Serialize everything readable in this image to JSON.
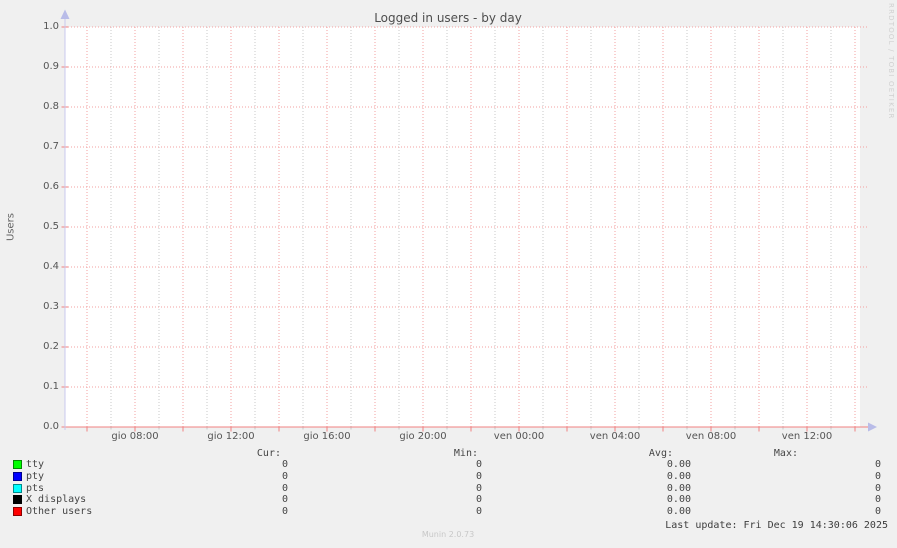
{
  "title": "Logged in users - by day",
  "y_axis_title": "Users",
  "watermark": "RRDTOOL / TOBI OETIKER",
  "footer": {
    "last_update": "Last update: Fri Dec 19 14:30:06 2025",
    "munin_version": "Munin 2.0.73"
  },
  "legend": {
    "headers": {
      "cur": "Cur:",
      "min": "Min:",
      "avg": "Avg:",
      "max": "Max:"
    },
    "rows": [
      {
        "label": "tty",
        "color": "#00ff00",
        "cur": "0",
        "min": "0",
        "avg": "0.00",
        "max": "0"
      },
      {
        "label": "pty",
        "color": "#0000ff",
        "cur": "0",
        "min": "0",
        "avg": "0.00",
        "max": "0"
      },
      {
        "label": "pts",
        "color": "#00ffff",
        "cur": "0",
        "min": "0",
        "avg": "0.00",
        "max": "0"
      },
      {
        "label": "X displays",
        "color": "#000000",
        "cur": "0",
        "min": "0",
        "avg": "0.00",
        "max": "0"
      },
      {
        "label": "Other users",
        "color": "#ff0000",
        "cur": "0",
        "min": "0",
        "avg": "0.00",
        "max": "0"
      }
    ]
  },
  "chart_data": {
    "type": "line",
    "title": "Logged in users - by day",
    "xlabel": "",
    "ylabel": "Users",
    "ylim": [
      0.0,
      1.0
    ],
    "y_tick_step": 0.1,
    "grid": true,
    "x_range_description": "about 33 hours, from Thu (gio) ~05:30 to Fri (ven) ~14:30",
    "x_tick_labels": [
      "gio 08:00",
      "gio 12:00",
      "gio 16:00",
      "gio 20:00",
      "ven 00:00",
      "ven 04:00",
      "ven 08:00",
      "ven 12:00"
    ],
    "y_tick_labels_top_to_bottom": [
      "1.0",
      "0.9",
      "0.8",
      "0.7",
      "0.6",
      "0.5",
      "0.4",
      "0.3",
      "0.2",
      "0.1",
      "0.0"
    ],
    "series": [
      {
        "name": "tty",
        "color": "#00ff00",
        "values": [
          0,
          0,
          0,
          0,
          0,
          0,
          0,
          0
        ]
      },
      {
        "name": "pty",
        "color": "#0000ff",
        "values": [
          0,
          0,
          0,
          0,
          0,
          0,
          0,
          0
        ]
      },
      {
        "name": "pts",
        "color": "#00ffff",
        "values": [
          0,
          0,
          0,
          0,
          0,
          0,
          0,
          0
        ]
      },
      {
        "name": "X displays",
        "color": "#000000",
        "values": [
          0,
          0,
          0,
          0,
          0,
          0,
          0,
          0
        ]
      },
      {
        "name": "Other users",
        "color": "#ff0000",
        "values": [
          0,
          0,
          0,
          0,
          0,
          0,
          0,
          0
        ]
      }
    ],
    "legend_position": "bottom"
  },
  "colors": {
    "page_bg": "#f0f0f0",
    "canvas_bg": "#ffffff",
    "major_grid": "#f3a0a0",
    "minor_grid": "#c9c9c9",
    "zero_line": "#f08080",
    "axis": "#c9c9ee",
    "arrow": "#b9bce8"
  }
}
